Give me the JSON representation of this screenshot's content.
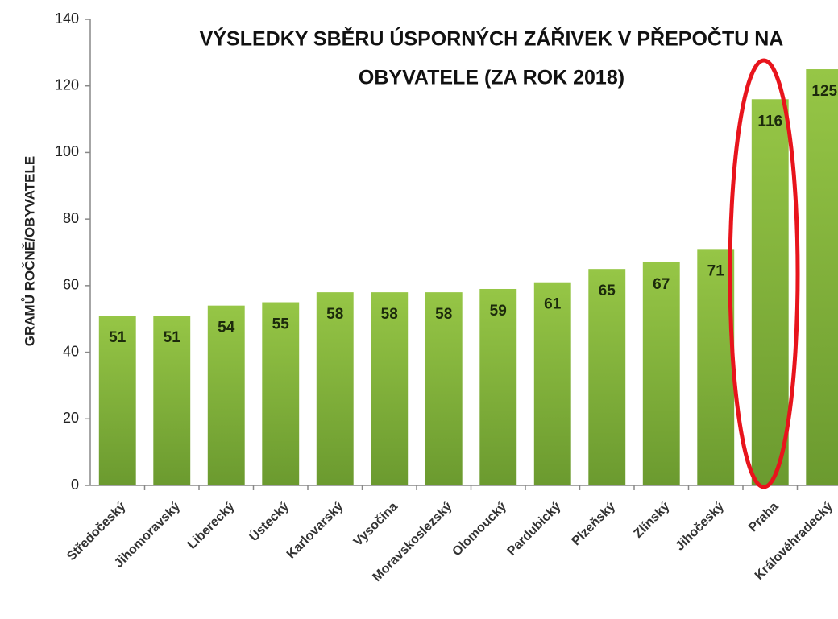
{
  "chart_data": {
    "type": "bar",
    "title": [
      "VÝSLEDKY SBĚRU ÚSPORNÝCH ZÁŘIVEK V PŘEPOČTU NA",
      "OBYVATELE (ZA ROK 2018)"
    ],
    "y_label": "GRAMŮ ROČNĚ/OBYVATELE",
    "categories": [
      "Středočeský",
      "Jihomoravský",
      "Liberecký",
      "Ústecký",
      "Karlovarský",
      "Vysočina",
      "Moravskoslezský",
      "Olomoucký",
      "Pardubický",
      "Plzeňský",
      "Zlínský",
      "Jihočeský",
      "Praha",
      "Královéhradecký"
    ],
    "values": [
      51,
      51,
      54,
      55,
      58,
      58,
      58,
      59,
      61,
      65,
      67,
      71,
      116,
      125
    ],
    "color": "#96c646",
    "ylim": [
      0,
      140
    ],
    "yticks": [
      0,
      20,
      40,
      60,
      80,
      100,
      120,
      140
    ],
    "grid": false
  }
}
